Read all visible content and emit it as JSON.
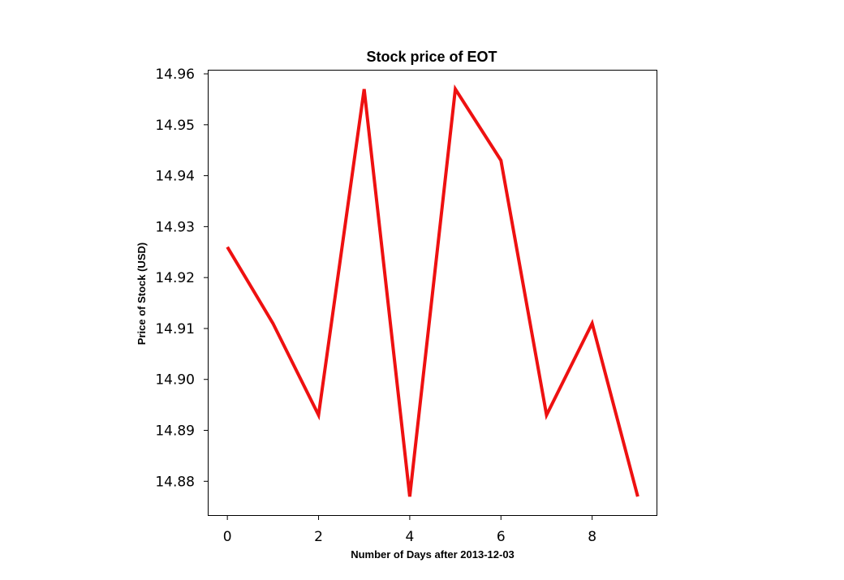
{
  "chart_data": {
    "type": "line",
    "title": "Stock price of EOT",
    "xlabel": "Number of Days after 2013-12-03",
    "ylabel": "Price of Stock (USD)",
    "x": [
      0,
      1,
      2,
      3,
      4,
      5,
      6,
      7,
      8,
      9
    ],
    "series": [
      {
        "values": [
          14.926,
          14.911,
          14.893,
          14.957,
          14.877,
          14.957,
          14.943,
          14.893,
          14.911,
          14.877
        ]
      }
    ],
    "xlim": [
      -0.43,
      9.43
    ],
    "ylim": [
      14.8732,
      14.9608
    ],
    "xticks": [
      "0",
      "2",
      "4",
      "6",
      "8"
    ],
    "xtick_values": [
      0,
      2,
      4,
      6,
      8
    ],
    "yticks": [
      "14.88",
      "14.89",
      "14.90",
      "14.91",
      "14.92",
      "14.93",
      "14.94",
      "14.95",
      "14.96"
    ],
    "ytick_values": [
      14.88,
      14.89,
      14.9,
      14.91,
      14.92,
      14.93,
      14.94,
      14.95,
      14.96
    ],
    "grid": false,
    "line_color": "#ee1111"
  }
}
